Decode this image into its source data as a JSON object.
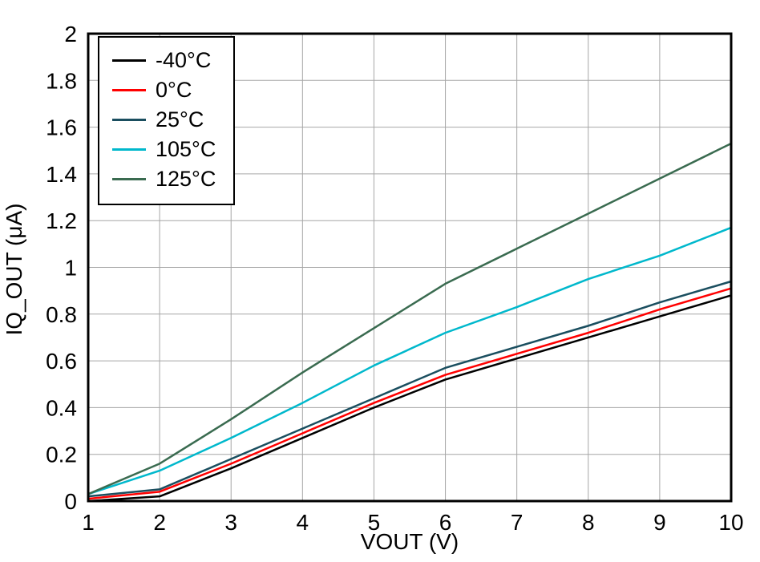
{
  "chart_data": {
    "type": "line",
    "title": "",
    "xlabel": "VOUT (V)",
    "ylabel": "IQ_OUT (μA)",
    "xlim": [
      1,
      10
    ],
    "ylim": [
      0,
      2
    ],
    "xticks": [
      1,
      2,
      3,
      4,
      5,
      6,
      7,
      8,
      9,
      10
    ],
    "yticks": [
      0,
      0.2,
      0.4,
      0.6,
      0.8,
      1,
      1.2,
      1.4,
      1.6,
      1.8,
      2
    ],
    "grid": true,
    "legend_position": "top-left",
    "x": [
      1,
      2,
      3,
      4,
      5,
      6,
      7,
      8,
      9,
      10
    ],
    "series": [
      {
        "name": "-40°C",
        "color": "#000000",
        "values": [
          0.0,
          0.02,
          0.14,
          0.27,
          0.4,
          0.52,
          0.61,
          0.7,
          0.79,
          0.88
        ]
      },
      {
        "name": "0°C",
        "color": "#ff0000",
        "values": [
          0.01,
          0.04,
          0.16,
          0.29,
          0.42,
          0.54,
          0.63,
          0.72,
          0.82,
          0.91
        ]
      },
      {
        "name": "25°C",
        "color": "#1a4e5f",
        "values": [
          0.02,
          0.05,
          0.18,
          0.31,
          0.44,
          0.57,
          0.66,
          0.75,
          0.85,
          0.94
        ]
      },
      {
        "name": "105°C",
        "color": "#00b8cc",
        "values": [
          0.03,
          0.13,
          0.27,
          0.42,
          0.58,
          0.72,
          0.83,
          0.95,
          1.05,
          1.17
        ]
      },
      {
        "name": "125°C",
        "color": "#3a6b50",
        "values": [
          0.03,
          0.16,
          0.35,
          0.55,
          0.74,
          0.93,
          1.08,
          1.23,
          1.38,
          1.53
        ]
      }
    ]
  }
}
